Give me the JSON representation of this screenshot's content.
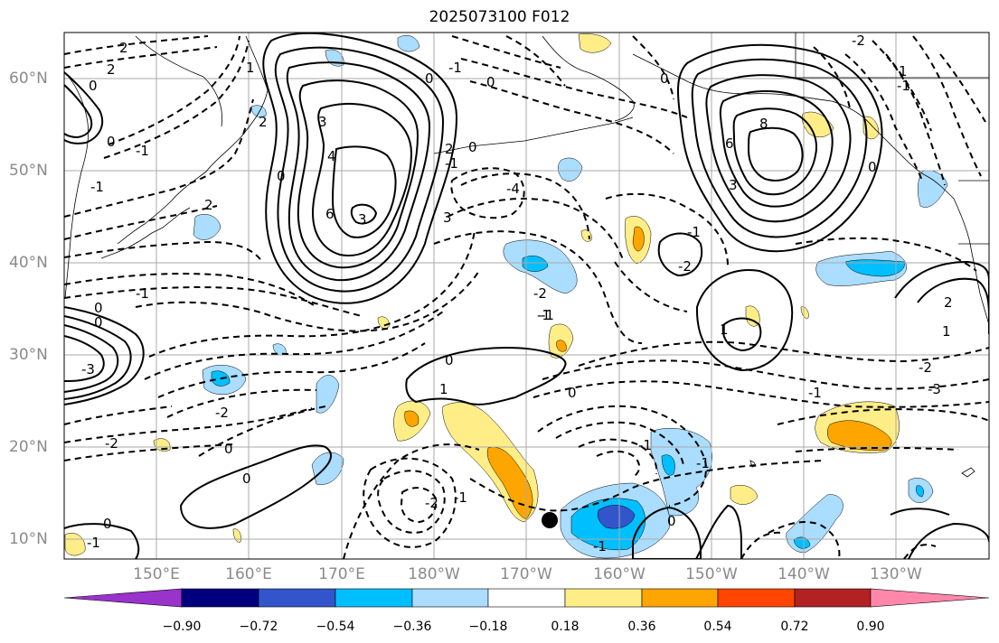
{
  "title": "2025073100 F012",
  "lat_labels": [
    "60°N",
    "50°N",
    "40°N",
    "30°N",
    "20°N",
    "10°N"
  ],
  "lon_labels": [
    "150°E",
    "160°E",
    "170°E",
    "180°W",
    "170°W",
    "160°W",
    "150°W",
    "140°W",
    "130°W"
  ],
  "colorbar": {
    "ticks": [
      "−0.90",
      "−0.72",
      "−0.54",
      "−0.36",
      "−0.18",
      "0.18",
      "0.36",
      "0.54",
      "0.72",
      "0.90"
    ],
    "colors": [
      "#9933cc",
      "#00007f",
      "#3355cc",
      "#00bfff",
      "#aaddff",
      "#ffffff",
      "#ffee88",
      "#ffa500",
      "#ff4500",
      "#b22222",
      "#ff88aa"
    ]
  },
  "contour_labels": [
    "2",
    "2",
    "0",
    "-1",
    "0",
    "-1",
    "2",
    "0",
    "2",
    "1",
    "0",
    "-1",
    "0",
    "3",
    "-1",
    "2",
    "0",
    "3",
    "4",
    "6",
    "3",
    "-1",
    "-4",
    "-1",
    "6",
    "8",
    "0",
    "3",
    "-1",
    "0",
    "-2",
    "-1",
    "-2",
    "1",
    "0",
    "1",
    "2",
    "0",
    "-2",
    "-1",
    "0",
    "-2",
    "-2",
    "-3",
    "1",
    "-1",
    "0",
    "-1",
    "0",
    "-1",
    "-2",
    "0",
    "0",
    "0",
    "-1",
    "-1",
    "-2",
    "-1",
    "-3",
    "1"
  ],
  "markers": {
    "black_dot": "storm-center-marker"
  },
  "colors": {
    "land_outline": "#000000",
    "grid": "#aaaaaa",
    "positive_contour": "#000000",
    "negative_contour": "#000000"
  }
}
